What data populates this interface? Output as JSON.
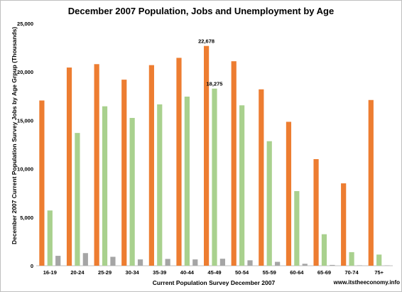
{
  "chart_data": {
    "type": "bar",
    "title": "December 2007 Population, Jobs and Unemployment by Age",
    "xlabel": "Current Population Survey December 2007",
    "ylabel": "December 2007 Current Population Survey Jobs by Age Grpup (Thousands)",
    "source_note": "www.itstheeconomy.info",
    "categories": [
      "16-19",
      "20-24",
      "25-29",
      "30-34",
      "35-39",
      "40-44",
      "45-49",
      "50-54",
      "55-59",
      "60-64",
      "65-69",
      "70-74",
      "75+"
    ],
    "ylim": [
      0,
      25000
    ],
    "yticks": [
      0,
      5000,
      10000,
      15000,
      20000,
      25000
    ],
    "ytick_labels": [
      "0",
      "5,000",
      "10,000",
      "15,000",
      "20,000",
      "25,000"
    ],
    "grid": false,
    "legend": "none",
    "series": [
      {
        "color": "#ED7D31",
        "values": [
          17050,
          20450,
          20800,
          19200,
          20700,
          21450,
          22678,
          21100,
          18200,
          14850,
          11000,
          8500,
          17100
        ]
      },
      {
        "color": "#A9D18E",
        "values": [
          5700,
          13700,
          16450,
          15250,
          16650,
          17450,
          18275,
          16550,
          12850,
          7700,
          3250,
          1400,
          1150
        ]
      },
      {
        "color": "#A5A5A5",
        "values": [
          1020,
          1300,
          920,
          650,
          700,
          650,
          720,
          560,
          400,
          200,
          80,
          40,
          30
        ]
      }
    ],
    "data_labels": [
      {
        "series": 0,
        "index": 6,
        "text": "22,678"
      },
      {
        "series": 1,
        "index": 6,
        "text": "18,275"
      }
    ]
  }
}
